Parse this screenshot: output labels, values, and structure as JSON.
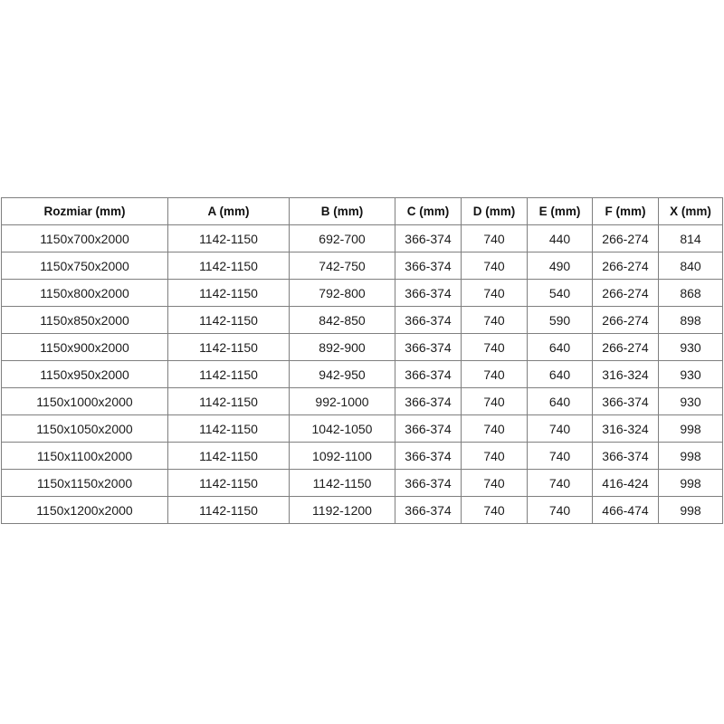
{
  "chart_data": {
    "type": "table",
    "columns": [
      "Rozmiar (mm)",
      "A (mm)",
      "B (mm)",
      "C (mm)",
      "D (mm)",
      "E (mm)",
      "F (mm)",
      "X (mm)"
    ],
    "rows": [
      [
        "1150x700x2000",
        "1142-1150",
        "692-700",
        "366-374",
        "740",
        "440",
        "266-274",
        "814"
      ],
      [
        "1150x750x2000",
        "1142-1150",
        "742-750",
        "366-374",
        "740",
        "490",
        "266-274",
        "840"
      ],
      [
        "1150x800x2000",
        "1142-1150",
        "792-800",
        "366-374",
        "740",
        "540",
        "266-274",
        "868"
      ],
      [
        "1150x850x2000",
        "1142-1150",
        "842-850",
        "366-374",
        "740",
        "590",
        "266-274",
        "898"
      ],
      [
        "1150x900x2000",
        "1142-1150",
        "892-900",
        "366-374",
        "740",
        "640",
        "266-274",
        "930"
      ],
      [
        "1150x950x2000",
        "1142-1150",
        "942-950",
        "366-374",
        "740",
        "640",
        "316-324",
        "930"
      ],
      [
        "1150x1000x2000",
        "1142-1150",
        "992-1000",
        "366-374",
        "740",
        "640",
        "366-374",
        "930"
      ],
      [
        "1150x1050x2000",
        "1142-1150",
        "1042-1050",
        "366-374",
        "740",
        "740",
        "316-324",
        "998"
      ],
      [
        "1150x1100x2000",
        "1142-1150",
        "1092-1100",
        "366-374",
        "740",
        "740",
        "366-374",
        "998"
      ],
      [
        "1150x1150x2000",
        "1142-1150",
        "1142-1150",
        "366-374",
        "740",
        "740",
        "416-424",
        "998"
      ],
      [
        "1150x1200x2000",
        "1142-1150",
        "1192-1200",
        "366-374",
        "740",
        "740",
        "466-474",
        "998"
      ]
    ],
    "title": "",
    "layout": {
      "grid": "on",
      "header_row": true
    }
  },
  "colors": {
    "border": "#7f7f7f",
    "text": "#1c1c1c",
    "header_text": "#111111",
    "background": "#ffffff"
  }
}
